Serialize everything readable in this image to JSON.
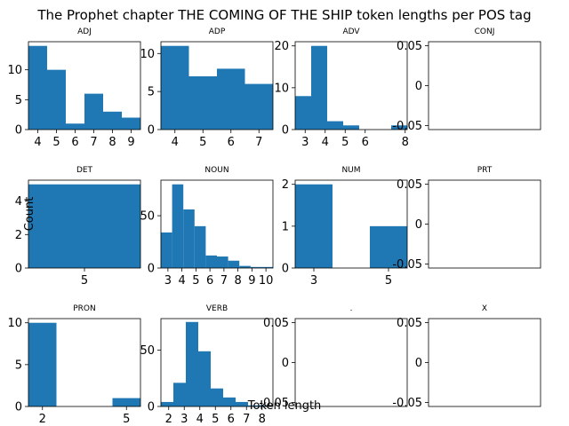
{
  "figure": {
    "title": "The Prophet chapter THE COMING OF THE SHIP token lengths per POS tag",
    "xlabel": "Token length",
    "ylabel": "Count"
  },
  "chart_data": [
    {
      "type": "bar",
      "title": "ADJ",
      "bins": [
        [
          3.5,
          4.5,
          14
        ],
        [
          4.5,
          5.5,
          10
        ],
        [
          5.5,
          6.5,
          1
        ],
        [
          6.5,
          7.5,
          6
        ],
        [
          7.5,
          8.5,
          3
        ],
        [
          8.5,
          9.5,
          2
        ]
      ],
      "xlim": [
        3.5,
        9.5
      ],
      "ylim": [
        0,
        14.7
      ],
      "xticks": [
        4,
        5,
        6,
        7,
        8,
        9
      ],
      "yticks": [
        0,
        5,
        10
      ]
    },
    {
      "type": "bar",
      "title": "ADP",
      "bins": [
        [
          3.5,
          4.5,
          11
        ],
        [
          4.5,
          5.5,
          7
        ],
        [
          5.5,
          6.5,
          8
        ],
        [
          6.5,
          7.5,
          6
        ]
      ],
      "xlim": [
        3.5,
        7.5
      ],
      "ylim": [
        0,
        11.55
      ],
      "xticks": [
        4,
        5,
        6,
        7
      ],
      "yticks": [
        0,
        5,
        10
      ]
    },
    {
      "type": "bar",
      "title": "ADV",
      "bins": [
        [
          2.5,
          3.3,
          8
        ],
        [
          3.3,
          4.1,
          20
        ],
        [
          4.1,
          4.9,
          2
        ],
        [
          4.9,
          5.7,
          1
        ],
        [
          5.7,
          6.5,
          0
        ],
        [
          6.5,
          7.3,
          0
        ],
        [
          7.3,
          8.1,
          1
        ]
      ],
      "xlim": [
        2.5,
        8.1
      ],
      "ylim": [
        0,
        21
      ],
      "xticks": [
        3,
        4,
        5,
        6,
        8
      ],
      "yticks": [
        0,
        10,
        20
      ]
    },
    {
      "type": "bar",
      "title": "CONJ",
      "bins": [],
      "xlim": [
        0,
        1
      ],
      "ylim": [
        -0.055,
        0.055
      ],
      "xticks": [],
      "yticks": [
        -0.05,
        0.0,
        0.05
      ]
    },
    {
      "type": "bar",
      "title": "DET",
      "bins": [
        [
          4.5,
          5.5,
          5
        ]
      ],
      "xlim": [
        4.5,
        5.5
      ],
      "ylim": [
        0,
        5.25
      ],
      "xticks": [
        5
      ],
      "yticks": [
        0,
        2,
        4
      ]
    },
    {
      "type": "bar",
      "title": "NOUN",
      "bins": [
        [
          2.5,
          3.3,
          34
        ],
        [
          3.3,
          4.1,
          80
        ],
        [
          4.1,
          4.9,
          56
        ],
        [
          4.9,
          5.7,
          40
        ],
        [
          5.7,
          6.5,
          12
        ],
        [
          6.5,
          7.3,
          11
        ],
        [
          7.3,
          8.1,
          7
        ],
        [
          8.1,
          8.9,
          2
        ],
        [
          8.9,
          9.7,
          1
        ],
        [
          9.7,
          10.5,
          1
        ]
      ],
      "xlim": [
        2.5,
        10.5
      ],
      "ylim": [
        0,
        84
      ],
      "xticks": [
        3,
        4,
        5,
        6,
        7,
        8,
        9,
        10
      ],
      "yticks": [
        0,
        50
      ]
    },
    {
      "type": "bar",
      "title": "NUM",
      "bins": [
        [
          2.5,
          3.5,
          2
        ],
        [
          3.5,
          4.5,
          0
        ],
        [
          4.5,
          5.5,
          1
        ]
      ],
      "xlim": [
        2.5,
        5.5
      ],
      "ylim": [
        0,
        2.1
      ],
      "xticks": [
        3,
        5
      ],
      "yticks": [
        0,
        1,
        2
      ]
    },
    {
      "type": "bar",
      "title": "PRT",
      "bins": [],
      "xlim": [
        0,
        1
      ],
      "ylim": [
        -0.055,
        0.055
      ],
      "xticks": [],
      "yticks": [
        -0.05,
        0.0,
        0.05
      ]
    },
    {
      "type": "bar",
      "title": "PRON",
      "bins": [
        [
          1.5,
          2.5,
          10
        ],
        [
          2.5,
          3.5,
          0
        ],
        [
          3.5,
          4.5,
          0
        ],
        [
          4.5,
          5.5,
          1
        ]
      ],
      "xlim": [
        1.5,
        5.5
      ],
      "ylim": [
        0,
        10.5
      ],
      "xticks": [
        2,
        5
      ],
      "yticks": [
        0,
        5,
        10
      ]
    },
    {
      "type": "bar",
      "title": "VERB",
      "bins": [
        [
          1.5,
          2.3,
          4
        ],
        [
          2.3,
          3.1,
          21
        ],
        [
          3.1,
          3.9,
          75
        ],
        [
          3.9,
          4.7,
          49
        ],
        [
          4.7,
          5.5,
          16
        ],
        [
          5.5,
          6.3,
          8
        ],
        [
          6.3,
          7.1,
          4
        ],
        [
          7.1,
          7.9,
          1
        ],
        [
          7.9,
          8.7,
          1
        ]
      ],
      "xlim": [
        1.5,
        8.7
      ],
      "ylim": [
        0,
        78
      ],
      "xticks": [
        2,
        3,
        4,
        5,
        6,
        7,
        8
      ],
      "yticks": [
        0,
        50
      ]
    },
    {
      "type": "bar",
      "title": ".",
      "bins": [],
      "xlim": [
        0,
        1
      ],
      "ylim": [
        -0.055,
        0.055
      ],
      "xticks": [],
      "yticks": [
        -0.05,
        0.0,
        0.05
      ]
    },
    {
      "type": "bar",
      "title": "X",
      "bins": [],
      "xlim": [
        0,
        1
      ],
      "ylim": [
        -0.055,
        0.055
      ],
      "xticks": [],
      "yticks": [
        -0.05,
        0.0,
        0.05
      ]
    }
  ]
}
